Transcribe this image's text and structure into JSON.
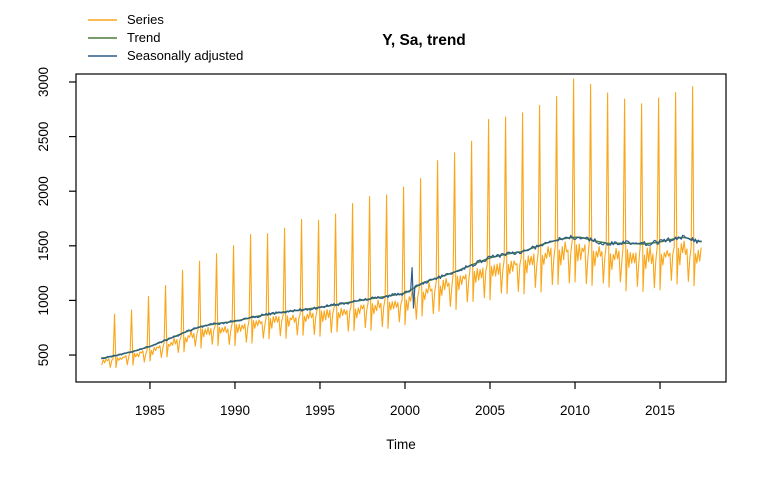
{
  "chart_data": {
    "type": "line",
    "title": "Y, Sa, trend",
    "xlabel": "Time",
    "ylabel": "",
    "xlim": [
      1980.65,
      2018.88
    ],
    "ylim": [
      253,
      3073
    ],
    "x_ticks": [
      1985,
      1990,
      1995,
      2000,
      2005,
      2010,
      2015
    ],
    "y_ticks": [
      500,
      1000,
      1500,
      2000,
      2500,
      3000
    ],
    "grid": false,
    "legend_position": "top-left",
    "frequency": "monthly",
    "start": [
      1982,
      3
    ],
    "end": [
      2017,
      6
    ],
    "series": [
      {
        "name": "Series",
        "color": "#FAA61A",
        "width": 1.1,
        "role": "raw-series"
      },
      {
        "name": "Trend",
        "color": "#4A7E3B",
        "width": 1.5,
        "role": "trend"
      },
      {
        "name": "Seasonally adjusted",
        "color": "#2B5C8A",
        "width": 1.2,
        "role": "seasonally-adjusted"
      }
    ],
    "trend_anchors": [
      [
        1982.17,
        470
      ],
      [
        1983,
        495
      ],
      [
        1984,
        533
      ],
      [
        1985,
        578
      ],
      [
        1986,
        640
      ],
      [
        1987,
        705
      ],
      [
        1988,
        762
      ],
      [
        1989,
        790
      ],
      [
        1990,
        808
      ],
      [
        1991,
        845
      ],
      [
        1992,
        875
      ],
      [
        1993,
        897
      ],
      [
        1994,
        916
      ],
      [
        1995,
        936
      ],
      [
        1996,
        962
      ],
      [
        1997,
        990
      ],
      [
        1998,
        1015
      ],
      [
        1999,
        1040
      ],
      [
        2000,
        1065
      ],
      [
        2000.5,
        1110
      ],
      [
        2001,
        1160
      ],
      [
        2002,
        1210
      ],
      [
        2003,
        1265
      ],
      [
        2004,
        1330
      ],
      [
        2005,
        1390
      ],
      [
        2006,
        1425
      ],
      [
        2007,
        1450
      ],
      [
        2008,
        1510
      ],
      [
        2009,
        1555
      ],
      [
        2009.7,
        1575
      ],
      [
        2010.3,
        1580
      ],
      [
        2011,
        1550
      ],
      [
        2012,
        1520
      ],
      [
        2013,
        1525
      ],
      [
        2014,
        1515
      ],
      [
        2015,
        1535
      ],
      [
        2016,
        1570
      ],
      [
        2016.4,
        1580
      ],
      [
        2017,
        1550
      ],
      [
        2017.42,
        1535
      ]
    ],
    "seasonal_factors": [
      0.73,
      0.94,
      0.86,
      0.95,
      0.89,
      0.96,
      0.9,
      0.94,
      0.75,
      0.9,
      0.97,
      1.88
    ],
    "seasonal_ramp": {
      "start_factor": 0.82,
      "years_to_full": 8
    },
    "noise": {
      "seed": 42,
      "series_amp": 0.05,
      "sa_amp": 0.028
    },
    "sa_anomalies": [
      {
        "t": 2000.417,
        "value": 1300
      },
      {
        "t": 2000.5,
        "value": 930
      }
    ],
    "axis_color": "#000000"
  }
}
